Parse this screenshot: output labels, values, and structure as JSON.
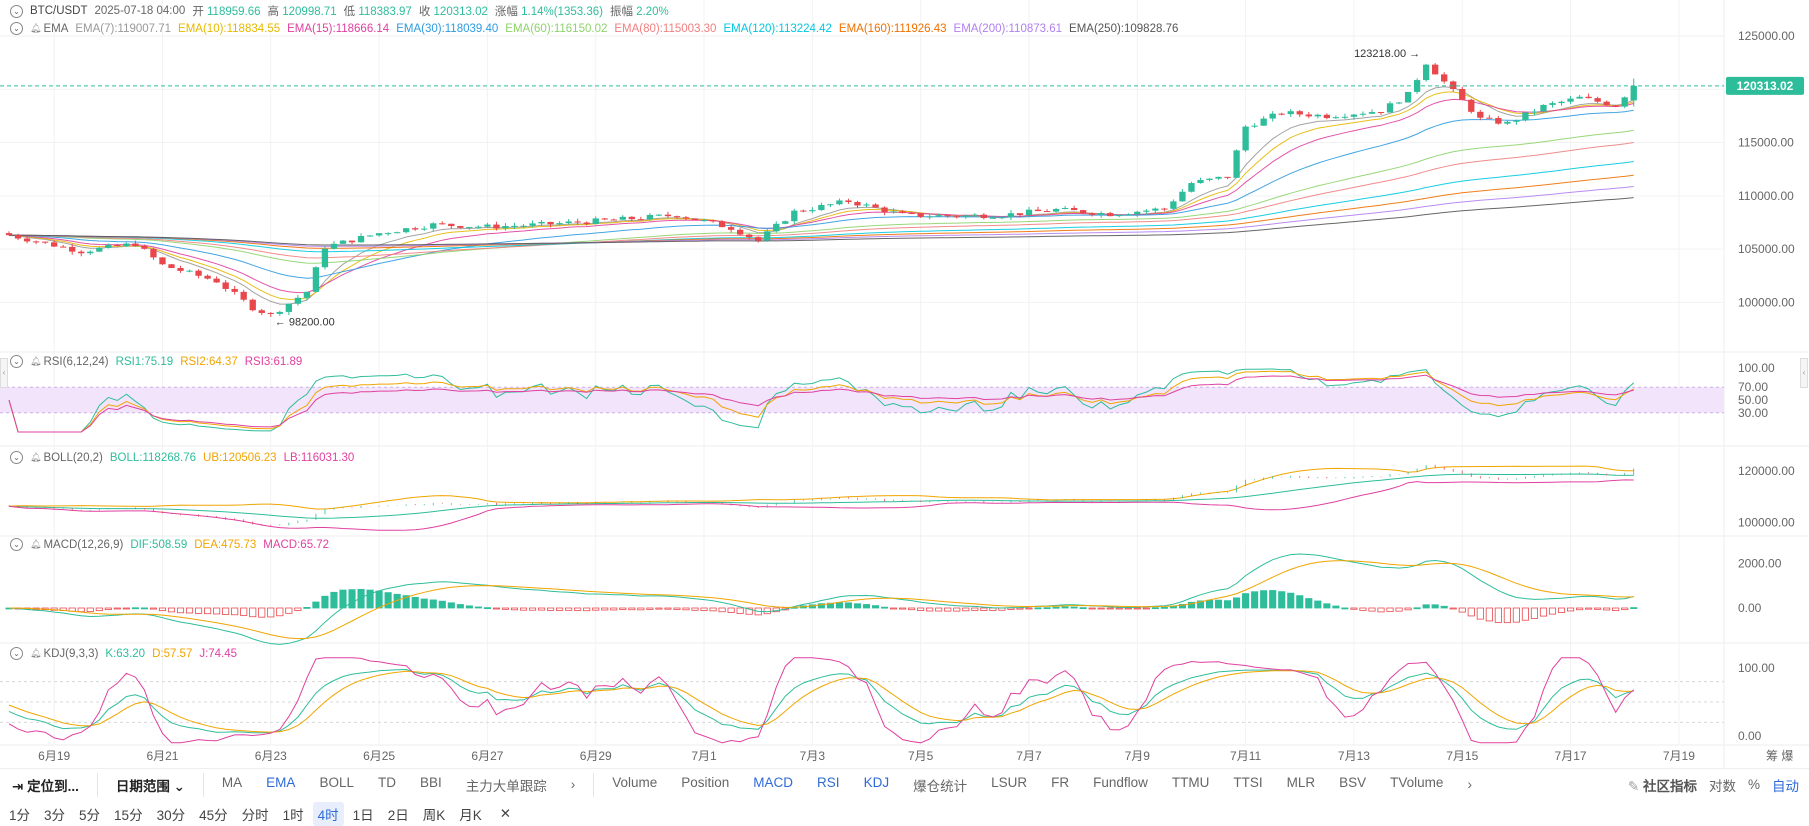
{
  "header": {
    "symbol": "BTC/USDT",
    "datetime": "2025-07-18 04:00",
    "open_label": "开",
    "open": "118959.66",
    "high_label": "高",
    "high": "120998.71",
    "low_label": "低",
    "low": "118383.97",
    "close_label": "收",
    "close": "120313.02",
    "change_label": "涨幅",
    "change": "1.14%(1353.36)",
    "amp_label": "振幅",
    "amp": "2.20%"
  },
  "colors": {
    "up": "#2ebd9b",
    "down": "#e8474c",
    "grid": "#f2f2f2",
    "text": "#666666",
    "price_line": "#2ebd9b",
    "rsi_band": "#f1e4fb"
  },
  "legends": {
    "ema": {
      "name": "EMA",
      "items": [
        {
          "text": "EMA(7):119007.71",
          "color": "#999999"
        },
        {
          "text": "EMA(10):118834.55",
          "color": "#e6b800"
        },
        {
          "text": "EMA(15):118666.14",
          "color": "#e040a0"
        },
        {
          "text": "EMA(30):118039.40",
          "color": "#2e9be0"
        },
        {
          "text": "EMA(60):116150.02",
          "color": "#8dd36a"
        },
        {
          "text": "EMA(80):115003.30",
          "color": "#f08080"
        },
        {
          "text": "EMA(120):113224.42",
          "color": "#00c8e0"
        },
        {
          "text": "EMA(160):111926.43",
          "color": "#f07000"
        },
        {
          "text": "EMA(200):110873.61",
          "color": "#b280f0"
        },
        {
          "text": "EMA(250):109828.76",
          "color": "#555555"
        }
      ]
    },
    "rsi": {
      "name": "RSI(6,12,24)",
      "items": [
        {
          "text": "RSI1:75.19",
          "color": "#2ebd9b"
        },
        {
          "text": "RSI2:64.37",
          "color": "#f0a500"
        },
        {
          "text": "RSI3:61.89",
          "color": "#e040a0"
        }
      ]
    },
    "boll": {
      "name": "BOLL(20,2)",
      "items": [
        {
          "text": "BOLL:118268.76",
          "color": "#2ebd9b"
        },
        {
          "text": "UB:120506.23",
          "color": "#f0a500"
        },
        {
          "text": "LB:116031.30",
          "color": "#e040a0"
        }
      ]
    },
    "macd": {
      "name": "MACD(12,26,9)",
      "items": [
        {
          "text": "DIF:508.59",
          "color": "#2ebd9b"
        },
        {
          "text": "DEA:475.73",
          "color": "#f0a500"
        },
        {
          "text": "MACD:65.72",
          "color": "#e040a0"
        }
      ]
    },
    "kdj": {
      "name": "KDJ(9,3,3)",
      "items": [
        {
          "text": "K:63.20",
          "color": "#2ebd9b"
        },
        {
          "text": "D:57.57",
          "color": "#f0a500"
        },
        {
          "text": "J:74.45",
          "color": "#e040a0"
        }
      ]
    }
  },
  "axes": {
    "main_ticks": [
      "125000.00",
      "120000.00",
      "115000.00",
      "110000.00",
      "105000.00",
      "100000.00"
    ],
    "rsi_ticks": [
      "100.00",
      "70.00",
      "50.00",
      "30.00"
    ],
    "boll_ticks": [
      "120000.00",
      "100000.00"
    ],
    "macd_ticks": [
      "2000.00",
      "0.00"
    ],
    "kdj_ticks": [
      "100.00",
      "0.00"
    ],
    "x_ticks": [
      "6月19",
      "6月21",
      "6月23",
      "6月25",
      "6月27",
      "6月29",
      "7月1",
      "7月3",
      "7月5",
      "7月7",
      "7月9",
      "7月11",
      "7月13",
      "7月15",
      "7月17",
      "7月19"
    ],
    "x_right": "筹 爆",
    "current_price": "120313.02",
    "high_label": "123218.00",
    "low_label": "98200.00"
  },
  "chart_data": {
    "type": "candlestick",
    "interval": "4h",
    "x_range": [
      "2025-06-18 00:00",
      "2025-07-19 20:00"
    ],
    "ylim": [
      96000,
      126500
    ],
    "close_points": [
      {
        "x": "2025-06-18 00:00",
        "y": 106500
      },
      {
        "x": "2025-06-19 12:00",
        "y": 104800
      },
      {
        "x": "2025-06-20 12:00",
        "y": 105500
      },
      {
        "x": "2025-06-21 00:00",
        "y": 103500
      },
      {
        "x": "2025-06-22 00:00",
        "y": 102000
      },
      {
        "x": "2025-06-22 16:00",
        "y": 99500
      },
      {
        "x": "2025-06-23 00:00",
        "y": 98800
      },
      {
        "x": "2025-06-23 16:00",
        "y": 101000
      },
      {
        "x": "2025-06-24 00:00",
        "y": 105200
      },
      {
        "x": "2025-06-25 00:00",
        "y": 106500
      },
      {
        "x": "2025-06-26 00:00",
        "y": 107300
      },
      {
        "x": "2025-06-27 00:00",
        "y": 107100
      },
      {
        "x": "2025-06-28 00:00",
        "y": 107300
      },
      {
        "x": "2025-06-29 12:00",
        "y": 107800
      },
      {
        "x": "2025-06-30 12:00",
        "y": 108200
      },
      {
        "x": "2025-07-01 12:00",
        "y": 107000
      },
      {
        "x": "2025-07-02 00:00",
        "y": 105800
      },
      {
        "x": "2025-07-02 16:00",
        "y": 108500
      },
      {
        "x": "2025-07-03 16:00",
        "y": 109500
      },
      {
        "x": "2025-07-04 16:00",
        "y": 108200
      },
      {
        "x": "2025-07-05 12:00",
        "y": 108100
      },
      {
        "x": "2025-07-06 12:00",
        "y": 108200
      },
      {
        "x": "2025-07-07 12:00",
        "y": 108700
      },
      {
        "x": "2025-07-08 12:00",
        "y": 108300
      },
      {
        "x": "2025-07-09 12:00",
        "y": 108800
      },
      {
        "x": "2025-07-10 00:00",
        "y": 111200
      },
      {
        "x": "2025-07-10 16:00",
        "y": 111800
      },
      {
        "x": "2025-07-11 00:00",
        "y": 116500
      },
      {
        "x": "2025-07-11 16:00",
        "y": 117800
      },
      {
        "x": "2025-07-12 12:00",
        "y": 117500
      },
      {
        "x": "2025-07-13 12:00",
        "y": 118000
      },
      {
        "x": "2025-07-14 00:00",
        "y": 119500
      },
      {
        "x": "2025-07-14 08:00",
        "y": 122500
      },
      {
        "x": "2025-07-14 20:00",
        "y": 119800
      },
      {
        "x": "2025-07-15 08:00",
        "y": 117200
      },
      {
        "x": "2025-07-15 20:00",
        "y": 116800
      },
      {
        "x": "2025-07-16 12:00",
        "y": 118400
      },
      {
        "x": "2025-07-17 04:00",
        "y": 119200
      },
      {
        "x": "2025-07-17 20:00",
        "y": 118500
      },
      {
        "x": "2025-07-18 04:00",
        "y": 120313.02
      }
    ],
    "ema_endpoints": [
      {
        "name": "EMA(7)",
        "value": 119007.71
      },
      {
        "name": "EMA(10)",
        "value": 118834.55
      },
      {
        "name": "EMA(15)",
        "value": 118666.14
      },
      {
        "name": "EMA(30)",
        "value": 118039.4
      },
      {
        "name": "EMA(60)",
        "value": 116150.02
      },
      {
        "name": "EMA(80)",
        "value": 115003.3
      },
      {
        "name": "EMA(120)",
        "value": 113224.42
      },
      {
        "name": "EMA(160)",
        "value": 111926.43
      },
      {
        "name": "EMA(200)",
        "value": 110873.61
      },
      {
        "name": "EMA(250)",
        "value": 109828.76
      }
    ]
  },
  "toolbar": {
    "locate": "定位到...",
    "date_range": "日期范围",
    "main_indicators": [
      "MA",
      "EMA",
      "BOLL",
      "TD",
      "BBI",
      "主力大单跟踪"
    ],
    "sub_indicators": [
      "Volume",
      "Position",
      "MACD",
      "RSI",
      "KDJ",
      "爆仓统计",
      "LSUR",
      "FR",
      "Fundflow",
      "TTMU",
      "TTSI",
      "MLR",
      "BSV",
      "TVolume"
    ],
    "community": "社区指标",
    "scale": [
      "对数",
      "%",
      "自动"
    ]
  },
  "periods": [
    "1分",
    "3分",
    "5分",
    "15分",
    "30分",
    "45分",
    "分时",
    "1时",
    "4时",
    "1日",
    "2日",
    "周K",
    "月K"
  ],
  "active_period": "4时"
}
